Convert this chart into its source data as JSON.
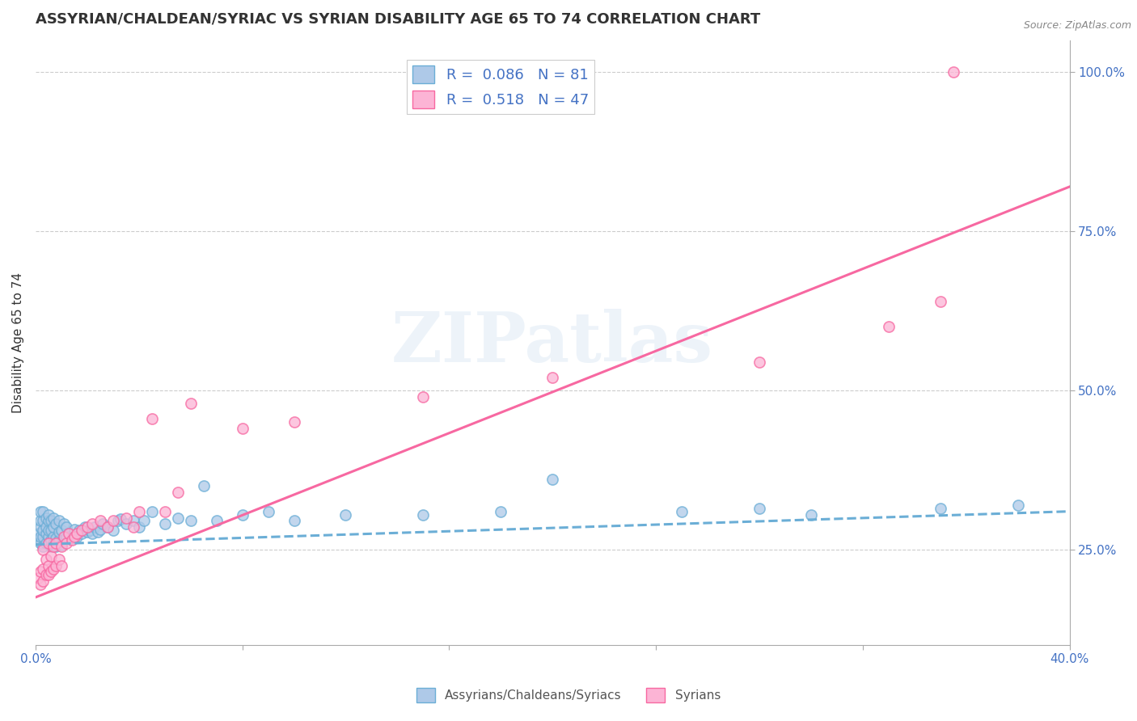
{
  "title": "ASSYRIAN/CHALDEAN/SYRIAC VS SYRIAN DISABILITY AGE 65 TO 74 CORRELATION CHART",
  "source": "Source: ZipAtlas.com",
  "ylabel": "Disability Age 65 to 74",
  "xlim": [
    0.0,
    0.4
  ],
  "ylim": [
    0.1,
    1.05
  ],
  "xticks": [
    0.0,
    0.08,
    0.16,
    0.24,
    0.32,
    0.4
  ],
  "xtick_labels": [
    "0.0%",
    "",
    "",
    "",
    "",
    "40.0%"
  ],
  "ytick_labels_right": [
    "25.0%",
    "50.0%",
    "75.0%",
    "100.0%"
  ],
  "yticks_right": [
    0.25,
    0.5,
    0.75,
    1.0
  ],
  "r_blue": 0.086,
  "n_blue": 81,
  "r_pink": 0.518,
  "n_pink": 47,
  "blue_color": "#6baed6",
  "pink_color": "#f768a1",
  "blue_fill": "#aec9e8",
  "pink_fill": "#fcb4d5",
  "legend_label_blue": "Assyrians/Chaldeans/Syriacs",
  "legend_label_pink": "Syrians",
  "watermark": "ZIPatlas",
  "title_fontsize": 13,
  "axis_label_fontsize": 11,
  "tick_fontsize": 11,
  "blue_trend_x": [
    0.0,
    0.4
  ],
  "blue_trend_y": [
    0.258,
    0.31
  ],
  "pink_trend_x": [
    0.0,
    0.4
  ],
  "pink_trend_y": [
    0.175,
    0.82
  ],
  "blue_scatter_x": [
    0.001,
    0.001,
    0.002,
    0.002,
    0.002,
    0.002,
    0.002,
    0.003,
    0.003,
    0.003,
    0.003,
    0.003,
    0.004,
    0.004,
    0.004,
    0.004,
    0.005,
    0.005,
    0.005,
    0.005,
    0.005,
    0.006,
    0.006,
    0.006,
    0.006,
    0.007,
    0.007,
    0.007,
    0.007,
    0.008,
    0.008,
    0.008,
    0.009,
    0.009,
    0.009,
    0.01,
    0.01,
    0.011,
    0.011,
    0.012,
    0.012,
    0.013,
    0.014,
    0.015,
    0.016,
    0.017,
    0.018,
    0.019,
    0.02,
    0.021,
    0.022,
    0.023,
    0.024,
    0.025,
    0.026,
    0.028,
    0.03,
    0.032,
    0.033,
    0.035,
    0.038,
    0.04,
    0.042,
    0.045,
    0.05,
    0.055,
    0.06,
    0.065,
    0.07,
    0.08,
    0.09,
    0.1,
    0.12,
    0.15,
    0.18,
    0.2,
    0.25,
    0.28,
    0.3,
    0.35,
    0.38
  ],
  "blue_scatter_y": [
    0.265,
    0.275,
    0.26,
    0.27,
    0.285,
    0.295,
    0.31,
    0.255,
    0.27,
    0.28,
    0.295,
    0.31,
    0.26,
    0.275,
    0.285,
    0.3,
    0.26,
    0.27,
    0.28,
    0.295,
    0.305,
    0.255,
    0.265,
    0.28,
    0.295,
    0.26,
    0.27,
    0.285,
    0.3,
    0.255,
    0.268,
    0.29,
    0.265,
    0.278,
    0.295,
    0.258,
    0.28,
    0.265,
    0.29,
    0.27,
    0.285,
    0.275,
    0.268,
    0.282,
    0.27,
    0.28,
    0.275,
    0.285,
    0.278,
    0.28,
    0.275,
    0.285,
    0.278,
    0.282,
    0.29,
    0.285,
    0.28,
    0.295,
    0.298,
    0.29,
    0.295,
    0.285,
    0.295,
    0.31,
    0.29,
    0.3,
    0.295,
    0.35,
    0.295,
    0.305,
    0.31,
    0.295,
    0.305,
    0.305,
    0.31,
    0.36,
    0.31,
    0.315,
    0.305,
    0.315,
    0.32
  ],
  "pink_scatter_x": [
    0.001,
    0.002,
    0.002,
    0.003,
    0.003,
    0.003,
    0.004,
    0.004,
    0.005,
    0.005,
    0.005,
    0.006,
    0.006,
    0.007,
    0.007,
    0.008,
    0.008,
    0.009,
    0.01,
    0.01,
    0.011,
    0.012,
    0.013,
    0.014,
    0.015,
    0.016,
    0.018,
    0.02,
    0.022,
    0.025,
    0.028,
    0.03,
    0.035,
    0.038,
    0.04,
    0.045,
    0.05,
    0.055,
    0.06,
    0.08,
    0.1,
    0.15,
    0.2,
    0.28,
    0.33,
    0.35,
    0.355
  ],
  "pink_scatter_y": [
    0.205,
    0.195,
    0.215,
    0.2,
    0.22,
    0.25,
    0.21,
    0.235,
    0.21,
    0.225,
    0.26,
    0.215,
    0.24,
    0.22,
    0.255,
    0.225,
    0.26,
    0.235,
    0.225,
    0.255,
    0.27,
    0.26,
    0.275,
    0.265,
    0.27,
    0.275,
    0.28,
    0.285,
    0.29,
    0.295,
    0.285,
    0.295,
    0.3,
    0.285,
    0.31,
    0.455,
    0.31,
    0.34,
    0.48,
    0.44,
    0.45,
    0.49,
    0.52,
    0.545,
    0.6,
    0.64,
    1.0
  ]
}
